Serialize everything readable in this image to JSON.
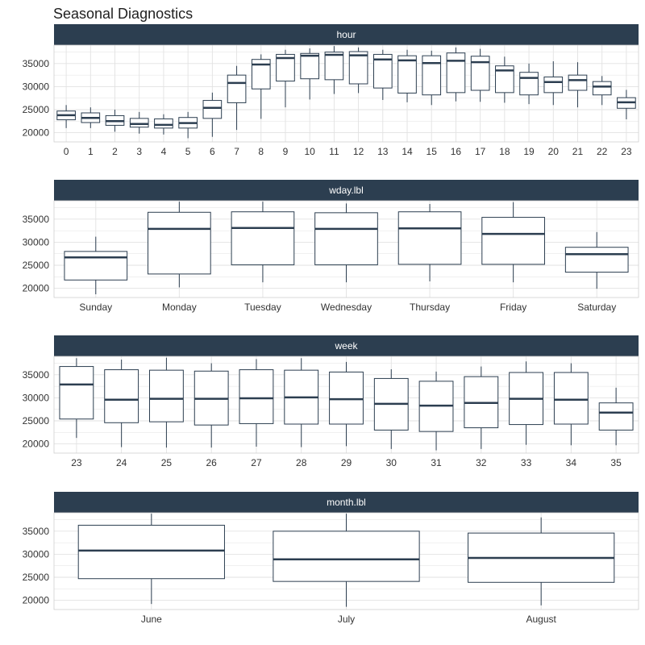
{
  "title": "Seasonal Diagnostics",
  "colors": {
    "strip": "#2c3e50",
    "box": "#2c3e50",
    "grid": "#e2e2e2",
    "text": "#333333"
  },
  "chart_data": [
    {
      "type": "boxplot",
      "facet": "hour",
      "ylim": [
        18000,
        39000
      ],
      "yticks": [
        20000,
        25000,
        30000,
        35000
      ],
      "categories": [
        "0",
        "1",
        "2",
        "3",
        "4",
        "5",
        "6",
        "7",
        "8",
        "9",
        "10",
        "11",
        "12",
        "13",
        "14",
        "15",
        "16",
        "17",
        "18",
        "19",
        "20",
        "21",
        "22",
        "23"
      ],
      "boxes": [
        {
          "min": 21000,
          "q1": 22800,
          "median": 23800,
          "q3": 24700,
          "max": 26000
        },
        {
          "min": 21000,
          "q1": 22200,
          "median": 23200,
          "q3": 24300,
          "max": 25500
        },
        {
          "min": 20200,
          "q1": 21600,
          "median": 22500,
          "q3": 23700,
          "max": 25000
        },
        {
          "min": 19800,
          "q1": 21200,
          "median": 21900,
          "q3": 23100,
          "max": 24500
        },
        {
          "min": 19600,
          "q1": 21000,
          "median": 21700,
          "q3": 23000,
          "max": 24000
        },
        {
          "min": 18800,
          "q1": 21000,
          "median": 22100,
          "q3": 23300,
          "max": 24500
        },
        {
          "min": 19100,
          "q1": 23100,
          "median": 25400,
          "q3": 27000,
          "max": 28700
        },
        {
          "min": 20600,
          "q1": 26500,
          "median": 30800,
          "q3": 32500,
          "max": 34500
        },
        {
          "min": 23000,
          "q1": 29500,
          "median": 34800,
          "q3": 35900,
          "max": 37000
        },
        {
          "min": 25500,
          "q1": 31200,
          "median": 36200,
          "q3": 37000,
          "max": 38000
        },
        {
          "min": 27200,
          "q1": 31700,
          "median": 36700,
          "q3": 37200,
          "max": 38300
        },
        {
          "min": 28400,
          "q1": 31500,
          "median": 36900,
          "q3": 37500,
          "max": 38800
        },
        {
          "min": 28600,
          "q1": 30600,
          "median": 36800,
          "q3": 37600,
          "max": 38500
        },
        {
          "min": 27100,
          "q1": 29700,
          "median": 35900,
          "q3": 37000,
          "max": 38000
        },
        {
          "min": 26600,
          "q1": 28600,
          "median": 35700,
          "q3": 36700,
          "max": 38000
        },
        {
          "min": 26000,
          "q1": 28200,
          "median": 35100,
          "q3": 36700,
          "max": 37800
        },
        {
          "min": 26800,
          "q1": 28700,
          "median": 35600,
          "q3": 37300,
          "max": 38500
        },
        {
          "min": 26700,
          "q1": 29200,
          "median": 35300,
          "q3": 36600,
          "max": 38200
        },
        {
          "min": 26500,
          "q1": 28700,
          "median": 33500,
          "q3": 34500,
          "max": 36500
        },
        {
          "min": 26200,
          "q1": 28200,
          "median": 31900,
          "q3": 33100,
          "max": 35000
        },
        {
          "min": 26000,
          "q1": 28700,
          "median": 31000,
          "q3": 32100,
          "max": 35500
        },
        {
          "min": 25500,
          "q1": 29200,
          "median": 31400,
          "q3": 32500,
          "max": 35300
        },
        {
          "min": 26000,
          "q1": 28200,
          "median": 30000,
          "q3": 31100,
          "max": 32300
        },
        {
          "min": 22900,
          "q1": 25300,
          "median": 26600,
          "q3": 27600,
          "max": 29300
        }
      ]
    },
    {
      "type": "boxplot",
      "facet": "wday.lbl",
      "ylim": [
        18000,
        39000
      ],
      "yticks": [
        20000,
        25000,
        30000,
        35000
      ],
      "categories": [
        "Sunday",
        "Monday",
        "Tuesday",
        "Wednesday",
        "Thursday",
        "Friday",
        "Saturday"
      ],
      "boxes": [
        {
          "min": 18700,
          "q1": 21800,
          "median": 26700,
          "q3": 28000,
          "max": 31200
        },
        {
          "min": 20200,
          "q1": 23100,
          "median": 32900,
          "q3": 36500,
          "max": 38800
        },
        {
          "min": 21300,
          "q1": 25100,
          "median": 33100,
          "q3": 36600,
          "max": 38800
        },
        {
          "min": 21300,
          "q1": 25100,
          "median": 32900,
          "q3": 36400,
          "max": 38400
        },
        {
          "min": 21500,
          "q1": 25200,
          "median": 33000,
          "q3": 36600,
          "max": 38300
        },
        {
          "min": 21300,
          "q1": 25200,
          "median": 31800,
          "q3": 35400,
          "max": 38700
        },
        {
          "min": 19900,
          "q1": 23500,
          "median": 27400,
          "q3": 28900,
          "max": 32200
        }
      ]
    },
    {
      "type": "boxplot",
      "facet": "week",
      "ylim": [
        18000,
        39000
      ],
      "yticks": [
        20000,
        25000,
        30000,
        35000
      ],
      "categories": [
        "23",
        "24",
        "25",
        "26",
        "27",
        "28",
        "29",
        "30",
        "31",
        "32",
        "33",
        "34",
        "35"
      ],
      "boxes": [
        {
          "min": 21300,
          "q1": 25400,
          "median": 32900,
          "q3": 36800,
          "max": 38600
        },
        {
          "min": 19300,
          "q1": 24600,
          "median": 29600,
          "q3": 36100,
          "max": 38300
        },
        {
          "min": 19200,
          "q1": 24800,
          "median": 29800,
          "q3": 36000,
          "max": 38700
        },
        {
          "min": 19200,
          "q1": 24100,
          "median": 29800,
          "q3": 35800,
          "max": 37500
        },
        {
          "min": 19400,
          "q1": 24400,
          "median": 29900,
          "q3": 36100,
          "max": 38400
        },
        {
          "min": 19300,
          "q1": 24300,
          "median": 30100,
          "q3": 36000,
          "max": 38600
        },
        {
          "min": 19500,
          "q1": 24300,
          "median": 29700,
          "q3": 35600,
          "max": 37800
        },
        {
          "min": 18900,
          "q1": 23000,
          "median": 28700,
          "q3": 34200,
          "max": 36200
        },
        {
          "min": 18600,
          "q1": 22700,
          "median": 28300,
          "q3": 33600,
          "max": 35700
        },
        {
          "min": 18900,
          "q1": 23500,
          "median": 28900,
          "q3": 34600,
          "max": 36800
        },
        {
          "min": 19800,
          "q1": 24200,
          "median": 29800,
          "q3": 35500,
          "max": 37900
        },
        {
          "min": 19700,
          "q1": 24300,
          "median": 29600,
          "q3": 35500,
          "max": 37500
        },
        {
          "min": 19700,
          "q1": 23000,
          "median": 26800,
          "q3": 28900,
          "max": 32200
        }
      ]
    },
    {
      "type": "boxplot",
      "facet": "month.lbl",
      "ylim": [
        18000,
        39000
      ],
      "yticks": [
        20000,
        25000,
        30000,
        35000
      ],
      "categories": [
        "June",
        "July",
        "August"
      ],
      "boxes": [
        {
          "min": 19200,
          "q1": 24700,
          "median": 30800,
          "q3": 36300,
          "max": 38800
        },
        {
          "min": 18600,
          "q1": 24100,
          "median": 28900,
          "q3": 35000,
          "max": 38800
        },
        {
          "min": 18900,
          "q1": 23900,
          "median": 29200,
          "q3": 34600,
          "max": 38000
        }
      ]
    }
  ]
}
